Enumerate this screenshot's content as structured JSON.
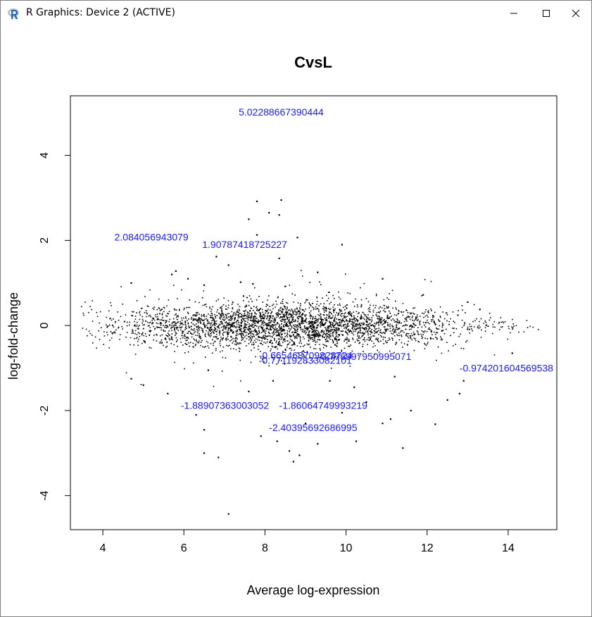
{
  "window": {
    "title": "R Graphics: Device 2 (ACTIVE)",
    "icon": "r-logo-icon",
    "buttons": [
      "minimize-icon",
      "maximize-icon",
      "close-icon"
    ]
  },
  "chart_data": {
    "type": "scatter",
    "title": "CvsL",
    "xlabel": "Average log-expression",
    "ylabel": "log-fold-change",
    "xlim": [
      3.2,
      15.2
    ],
    "ylim": [
      -4.8,
      5.4
    ],
    "xticks": [
      "4",
      "6",
      "8",
      "10",
      "12",
      "14"
    ],
    "yticks": [
      "-4",
      "-2",
      "0",
      "2",
      "4"
    ],
    "grid": false,
    "point_color": "#000000",
    "label_color": "#1a1aff",
    "bulk": {
      "description_free": true,
      "x_range": [
        3.4,
        14.8
      ],
      "center_y": 0,
      "count": 5200
    },
    "outliers": [
      {
        "x": 7.8,
        "y": 2.92
      },
      {
        "x": 8.4,
        "y": 2.95
      },
      {
        "x": 7.6,
        "y": 2.5
      },
      {
        "x": 8.1,
        "y": 2.65
      },
      {
        "x": 8.35,
        "y": 2.6
      },
      {
        "x": 7.8,
        "y": 2.13
      },
      {
        "x": 8.8,
        "y": 2.07
      },
      {
        "x": 9.9,
        "y": 1.9
      },
      {
        "x": 6.8,
        "y": 1.62
      },
      {
        "x": 8.35,
        "y": 1.58
      },
      {
        "x": 7.1,
        "y": 1.42
      },
      {
        "x": 5.8,
        "y": 1.28
      },
      {
        "x": 9.3,
        "y": 1.25
      },
      {
        "x": 10.9,
        "y": 1.1
      },
      {
        "x": 5.7,
        "y": 1.2
      },
      {
        "x": 6.1,
        "y": 1.1
      },
      {
        "x": 4.7,
        "y": 1.0
      },
      {
        "x": 7.4,
        "y": 1.02
      },
      {
        "x": 7.7,
        "y": 0.98
      },
      {
        "x": 6.5,
        "y": 0.95
      },
      {
        "x": 8.5,
        "y": 0.92
      },
      {
        "x": 6.3,
        "y": -2.1
      },
      {
        "x": 6.5,
        "y": -2.45
      },
      {
        "x": 6.5,
        "y": -3.0
      },
      {
        "x": 6.85,
        "y": -3.1
      },
      {
        "x": 7.1,
        "y": -4.43
      },
      {
        "x": 8.6,
        "y": -2.95
      },
      {
        "x": 8.7,
        "y": -3.2
      },
      {
        "x": 8.85,
        "y": -3.05
      },
      {
        "x": 9.3,
        "y": -2.78
      },
      {
        "x": 10.25,
        "y": -2.72
      },
      {
        "x": 11.4,
        "y": -2.88
      },
      {
        "x": 8.3,
        "y": -2.72
      },
      {
        "x": 7.9,
        "y": -2.6
      },
      {
        "x": 9.0,
        "y": -2.3
      },
      {
        "x": 10.9,
        "y": -2.3
      },
      {
        "x": 12.2,
        "y": -2.32
      },
      {
        "x": 11.1,
        "y": -2.2
      },
      {
        "x": 11.6,
        "y": -2.0
      },
      {
        "x": 12.5,
        "y": -1.75
      },
      {
        "x": 12.8,
        "y": -1.6
      },
      {
        "x": 10.5,
        "y": -1.8
      },
      {
        "x": 9.9,
        "y": -2.05
      },
      {
        "x": 7.6,
        "y": -1.55
      },
      {
        "x": 5.6,
        "y": -1.6
      },
      {
        "x": 5.0,
        "y": -1.4
      },
      {
        "x": 4.7,
        "y": -1.25
      },
      {
        "x": 12.9,
        "y": -1.3
      },
      {
        "x": 14.1,
        "y": -0.65
      },
      {
        "x": 13.0,
        "y": 0.55
      },
      {
        "x": 11.9,
        "y": 0.72
      },
      {
        "x": 13.3,
        "y": 0.38
      },
      {
        "x": 6.6,
        "y": -1.05
      },
      {
        "x": 9.6,
        "y": -1.3
      },
      {
        "x": 8.2,
        "y": -1.3
      },
      {
        "x": 10.2,
        "y": -1.45
      },
      {
        "x": 11.2,
        "y": -1.2
      }
    ],
    "annotations": [
      {
        "x": 8.4,
        "y": 5.02,
        "text": "5.02288667390444",
        "anchor": "center"
      },
      {
        "x": 5.2,
        "y": 2.08,
        "text": "2.084056943079",
        "anchor": "center"
      },
      {
        "x": 7.5,
        "y": 1.91,
        "text": "1.90787418725227",
        "anchor": "center"
      },
      {
        "x": 8.1,
        "y": -1.88,
        "text": "-1.88907363003052",
        "anchor": "end"
      },
      {
        "x": 8.35,
        "y": -1.88,
        "text": "-1.86064749993219",
        "anchor": "start"
      },
      {
        "x": 8.1,
        "y": -2.4,
        "text": "-2.40395692686995",
        "anchor": "start"
      },
      {
        "x": 7.85,
        "y": -0.7,
        "text": "-0.665468709828724",
        "anchor": "start"
      },
      {
        "x": 7.85,
        "y": -0.82,
        "text": "-0.771192833082101",
        "anchor": "start"
      },
      {
        "x": 9.3,
        "y": -0.73,
        "text": "-0.776997950995071",
        "anchor": "start"
      },
      {
        "x": 12.8,
        "y": -1.0,
        "text": "-0.974201604569538",
        "anchor": "start"
      }
    ]
  }
}
